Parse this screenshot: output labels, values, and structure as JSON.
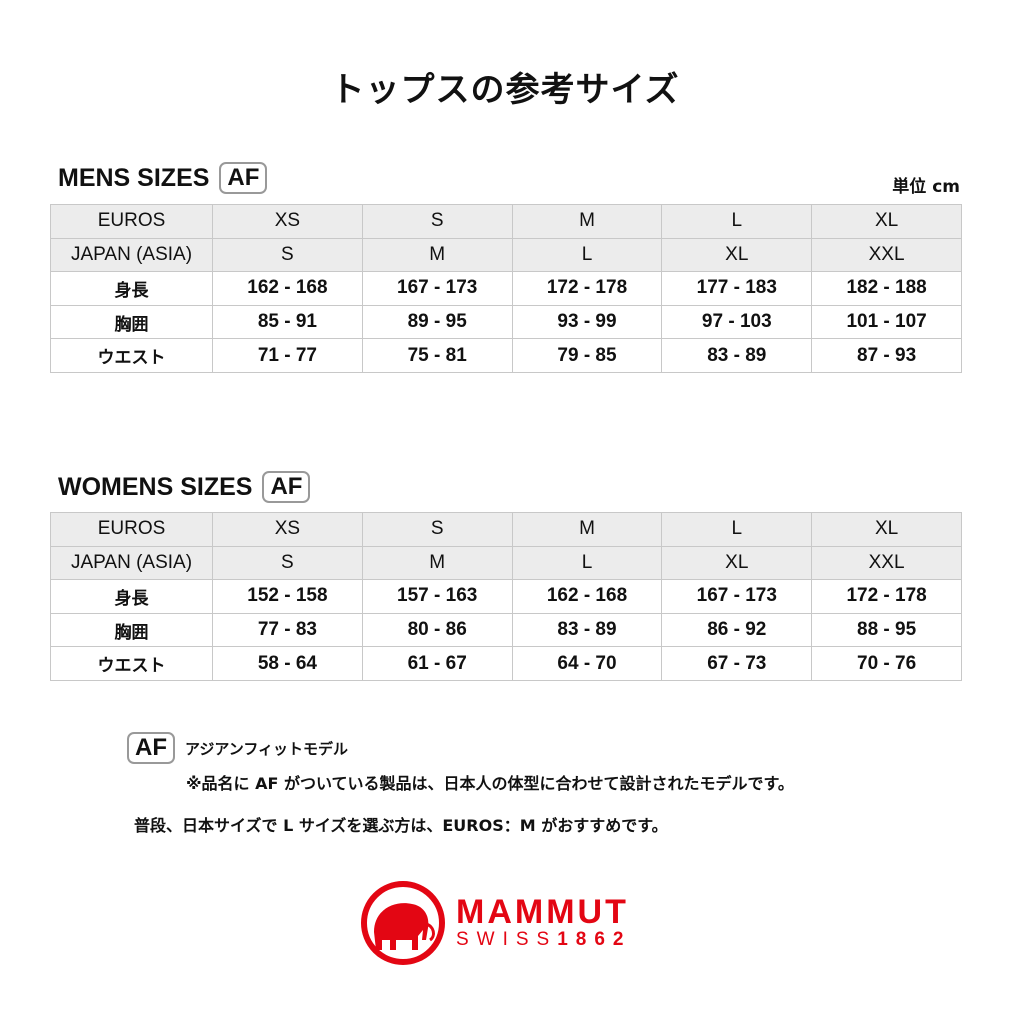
{
  "title": "トップスの参考サイズ",
  "unit": "単位 cm",
  "af_badge": "AF",
  "mens": {
    "title": "MENS SIZES",
    "header_rows": [
      [
        "EUROS",
        "XS",
        "S",
        "M",
        "L",
        "XL"
      ],
      [
        "JAPAN (ASIA)",
        "S",
        "M",
        "L",
        "XL",
        "XXL"
      ]
    ],
    "body_rows": [
      [
        "身長",
        "162 - 168",
        "167 - 173",
        "172 - 178",
        "177 - 183",
        "182 - 188"
      ],
      [
        "胸囲",
        "85 - 91",
        "89 - 95",
        "93 - 99",
        "97 - 103",
        "101 - 107"
      ],
      [
        "ウエスト",
        "71 - 77",
        "75 - 81",
        "79 - 85",
        "83 - 89",
        "87 - 93"
      ]
    ]
  },
  "womens": {
    "title": "WOMENS SIZES",
    "header_rows": [
      [
        "EUROS",
        "XS",
        "S",
        "M",
        "L",
        "XL"
      ],
      [
        "JAPAN (ASIA)",
        "S",
        "M",
        "L",
        "XL",
        "XXL"
      ]
    ],
    "body_rows": [
      [
        "身長",
        "152 - 158",
        "157 - 163",
        "162 - 168",
        "167 - 173",
        "172 - 178"
      ],
      [
        "胸囲",
        "77 - 83",
        "80 - 86",
        "83 - 89",
        "86 - 92",
        "88 - 95"
      ],
      [
        "ウエスト",
        "58 - 64",
        "61 - 67",
        "64 - 70",
        "67 - 73",
        "70 - 76"
      ]
    ]
  },
  "notes": {
    "af_label": "アジアンフィットモデル",
    "af_desc": "※品名に AF がついている製品は、日本人の体型に合わせて設計されたモデルです。",
    "recommend": "普段、日本サイズで L サイズを選ぶ方は、EUROS：M がおすすめです。"
  },
  "logo": {
    "brand": "MAMMUT",
    "sub_a": "SWISS",
    "sub_b": "1862",
    "color": "#e30613"
  }
}
